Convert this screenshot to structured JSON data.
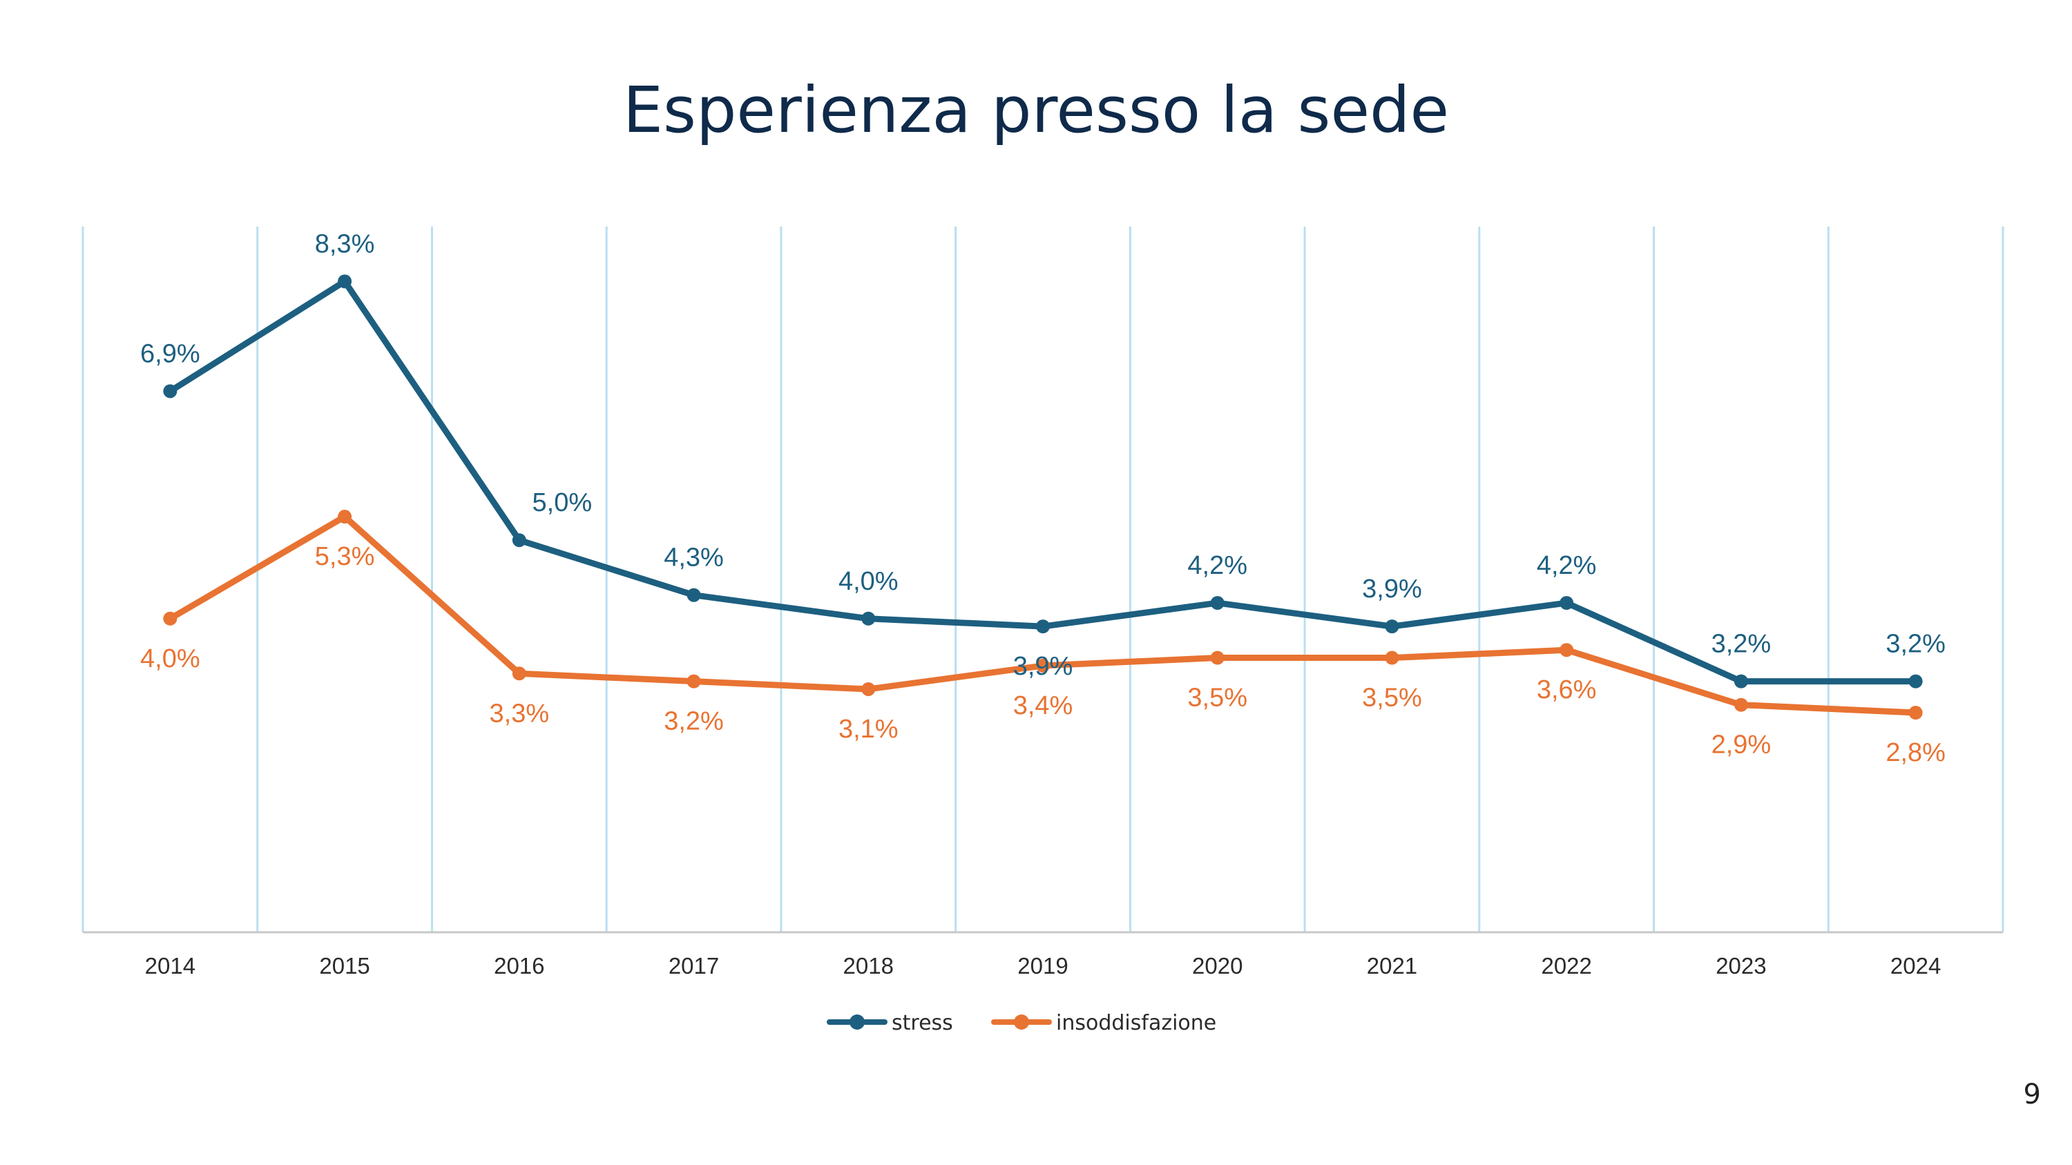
{
  "slide": {
    "page_number": "9"
  },
  "chart_data": {
    "type": "line",
    "title": "Esperienza presso la sede",
    "categories": [
      "2014",
      "2015",
      "2016",
      "2017",
      "2018",
      "2019",
      "2020",
      "2021",
      "2022",
      "2023",
      "2024"
    ],
    "series": [
      {
        "name": "stress",
        "color": "#1d5f80",
        "values": [
          6.9,
          8.3,
          5.0,
          4.3,
          4.0,
          3.9,
          4.2,
          3.9,
          4.2,
          3.2,
          3.2
        ],
        "labels": [
          "6,9%",
          "8,3%",
          "5,0%",
          "4,3%",
          "4,0%",
          "3,9%",
          "4,2%",
          "3,9%",
          "4,2%",
          "3,2%",
          "3,2%"
        ]
      },
      {
        "name": "insoddisfazione",
        "color": "#e87332",
        "values": [
          4.0,
          5.3,
          3.3,
          3.2,
          3.1,
          3.4,
          3.5,
          3.5,
          3.6,
          2.9,
          2.8
        ],
        "labels": [
          "4,0%",
          "5,3%",
          "3,3%",
          "3,2%",
          "3,1%",
          "3,4%",
          "3,5%",
          "3,5%",
          "3,6%",
          "2,9%",
          "2,8%"
        ]
      }
    ],
    "ylim": [
      0,
      9
    ],
    "grid": "vertical",
    "gridline_color": "#b9dff0",
    "legend": "bottom-center",
    "xlabel": "",
    "ylabel": ""
  }
}
